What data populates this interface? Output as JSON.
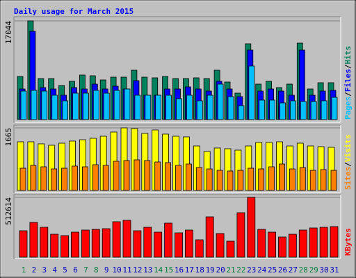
{
  "chart_data": [
    {
      "type": "bar",
      "title": "Daily usage for March 2015",
      "categories": [
        "1",
        "2",
        "3",
        "4",
        "5",
        "6",
        "7",
        "8",
        "9",
        "10",
        "11",
        "12",
        "13",
        "14",
        "15",
        "16",
        "17",
        "18",
        "19",
        "20",
        "21",
        "22",
        "23",
        "24",
        "25",
        "26",
        "27",
        "28",
        "29",
        "30",
        "31"
      ],
      "category_colors": [
        "#008040",
        "#0000c0",
        "#0000c0",
        "#0000c0",
        "#0000c0",
        "#0000c0",
        "#008040",
        "#008040",
        "#0000c0",
        "#0000c0",
        "#0000c0",
        "#0000c0",
        "#0000c0",
        "#008040",
        "#008040",
        "#0000c0",
        "#0000c0",
        "#0000c0",
        "#0000c0",
        "#0000c0",
        "#008040",
        "#008040",
        "#0000c0",
        "#0000c0",
        "#0000c0",
        "#0000c0",
        "#0000c0",
        "#008040",
        "#008040",
        "#0000c0",
        "#0000c0"
      ],
      "legend_separator": "/",
      "ylim": [
        0,
        17044
      ],
      "yticks": [
        17044
      ],
      "series": [
        {
          "name": "Hits",
          "color": "#00805c",
          "values": [
            7442,
            17044,
            7082,
            7082,
            5881,
            6602,
            7682,
            7562,
            6842,
            7322,
            7322,
            8522,
            7322,
            7202,
            7442,
            7082,
            7082,
            7202,
            7082,
            8522,
            6482,
            4561,
            13083,
            6122,
            6602,
            5521,
            6122,
            13203,
            5281,
            6362,
            6362
          ]
        },
        {
          "name": "Files",
          "color": "#0000ff",
          "values": [
            5281,
            15244,
            5521,
            5281,
            4201,
            5521,
            5281,
            6122,
            5281,
            5761,
            5281,
            6722,
            4201,
            4201,
            5281,
            5281,
            5641,
            5281,
            4921,
            6602,
            5281,
            3961,
            12003,
            4921,
            5281,
            4921,
            4201,
            12003,
            4201,
            4921,
            5041
          ]
        },
        {
          "name": "Pages",
          "color": "#00c0ff",
          "values": [
            4921,
            5041,
            4921,
            4201,
            3241,
            4561,
            4561,
            5041,
            4561,
            5041,
            5281,
            4201,
            4201,
            4201,
            4201,
            3601,
            4201,
            3241,
            4201,
            6122,
            3961,
            2401,
            9242,
            3361,
            3361,
            2881,
            3241,
            3121,
            3121,
            3241,
            3841
          ]
        }
      ]
    },
    {
      "type": "bar",
      "ylim": [
        0,
        1665
      ],
      "yticks": [
        1665
      ],
      "legend_separator": "/",
      "series": [
        {
          "name": "Visits",
          "color": "#ffff00",
          "values": [
            1295,
            1295,
            1240,
            1203,
            1258,
            1314,
            1350,
            1388,
            1443,
            1554,
            1665,
            1647,
            1517,
            1610,
            1499,
            1443,
            1425,
            1184,
            1036,
            1129,
            1110,
            1073,
            1184,
            1277,
            1277,
            1295,
            1184,
            1258,
            1184,
            1166,
            1147
          ]
        },
        {
          "name": "Sites",
          "color": "#ff8000",
          "values": [
            592,
            666,
            629,
            573,
            592,
            648,
            629,
            685,
            666,
            777,
            796,
            814,
            796,
            758,
            740,
            666,
            703,
            611,
            573,
            536,
            518,
            536,
            592,
            573,
            629,
            703,
            573,
            611,
            536,
            555,
            536
          ]
        }
      ]
    },
    {
      "type": "bar",
      "ylim": [
        0,
        512614
      ],
      "yticks": [
        512614
      ],
      "series": [
        {
          "name": "KBytes",
          "color": "#ff0000",
          "values": [
            226500,
            298000,
            256300,
            196700,
            184800,
            214600,
            232500,
            238400,
            244400,
            304000,
            315900,
            226500,
            256300,
            214600,
            292000,
            208600,
            232500,
            149000,
            345700,
            202700,
            137100,
            381300,
            512614,
            238400,
            214600,
            172800,
            196700,
            232500,
            250300,
            256300,
            262300
          ]
        }
      ]
    }
  ]
}
